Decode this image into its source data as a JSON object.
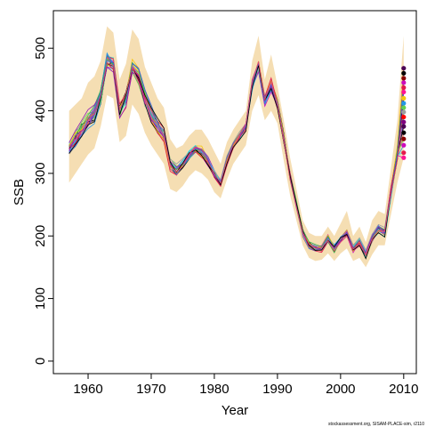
{
  "chart_data": {
    "type": "line",
    "title": "",
    "xlabel": "Year",
    "ylabel": "SSB",
    "xlim": [
      1954.5,
      2012
    ],
    "ylim": [
      -20,
      560
    ],
    "xticks": [
      1960,
      1970,
      1980,
      1990,
      2000,
      2010
    ],
    "yticks": [
      0,
      100,
      200,
      300,
      400,
      500
    ],
    "grid": false,
    "legend": "none",
    "credit": "stockassessment.org, SISAM-PLACE-sim, r2110",
    "band_color": "#F5DEB3",
    "series_colors": [
      "#000000",
      "#DF536B",
      "#61D04F",
      "#2297E6",
      "#28E2E5",
      "#CD0BBC",
      "#F5C710",
      "#9E9E9E",
      "#E6194B",
      "#3CB44B",
      "#4363D8",
      "#911EB4"
    ],
    "final_point_colors": [
      "#4B0055",
      "#000000",
      "#8B0000",
      "#CD0BBC",
      "#E6194B",
      "#FF1493",
      "#F5C710",
      "#2297E6",
      "#61D04F",
      "#9E9E9E",
      "#FF0000",
      "#800080"
    ],
    "years": [
      1957,
      1958,
      1959,
      1960,
      1961,
      1962,
      1963,
      1964,
      1965,
      1966,
      1967,
      1968,
      1969,
      1970,
      1971,
      1972,
      1973,
      1974,
      1975,
      1976,
      1977,
      1978,
      1979,
      1980,
      1981,
      1982,
      1983,
      1984,
      1985,
      1986,
      1987,
      1988,
      1989,
      1990,
      1991,
      1992,
      1993,
      1994,
      1995,
      1996,
      1997,
      1998,
      1999,
      2000,
      2001,
      2002,
      2003,
      2004,
      2005,
      2006,
      2007,
      2008,
      2009,
      2010
    ],
    "mean_ssb": [
      340,
      355,
      370,
      385,
      395,
      425,
      480,
      475,
      400,
      420,
      470,
      455,
      420,
      395,
      375,
      360,
      315,
      305,
      315,
      330,
      340,
      335,
      320,
      300,
      285,
      320,
      345,
      360,
      375,
      440,
      470,
      415,
      440,
      410,
      355,
      295,
      250,
      205,
      185,
      180,
      180,
      195,
      180,
      195,
      205,
      180,
      190,
      170,
      195,
      210,
      205,
      270,
      330,
      390
    ],
    "band_lower": [
      285,
      300,
      315,
      330,
      340,
      375,
      425,
      420,
      350,
      360,
      410,
      395,
      365,
      345,
      330,
      315,
      275,
      270,
      280,
      295,
      305,
      300,
      290,
      270,
      260,
      290,
      315,
      330,
      345,
      400,
      425,
      385,
      400,
      380,
      320,
      265,
      225,
      185,
      165,
      160,
      162,
      172,
      160,
      172,
      180,
      160,
      165,
      150,
      170,
      185,
      185,
      235,
      285,
      325
    ],
    "band_upper": [
      400,
      410,
      420,
      445,
      455,
      480,
      535,
      525,
      450,
      475,
      530,
      515,
      470,
      445,
      420,
      405,
      355,
      340,
      345,
      360,
      370,
      370,
      355,
      335,
      315,
      350,
      370,
      385,
      400,
      480,
      520,
      450,
      490,
      440,
      385,
      325,
      275,
      225,
      205,
      200,
      200,
      215,
      200,
      220,
      240,
      200,
      215,
      190,
      225,
      240,
      235,
      310,
      385,
      520
    ],
    "final_values": [
      468,
      460,
      452,
      445,
      437,
      430,
      420,
      412,
      405,
      398,
      390,
      382,
      375,
      365,
      355,
      345,
      333,
      325
    ]
  }
}
